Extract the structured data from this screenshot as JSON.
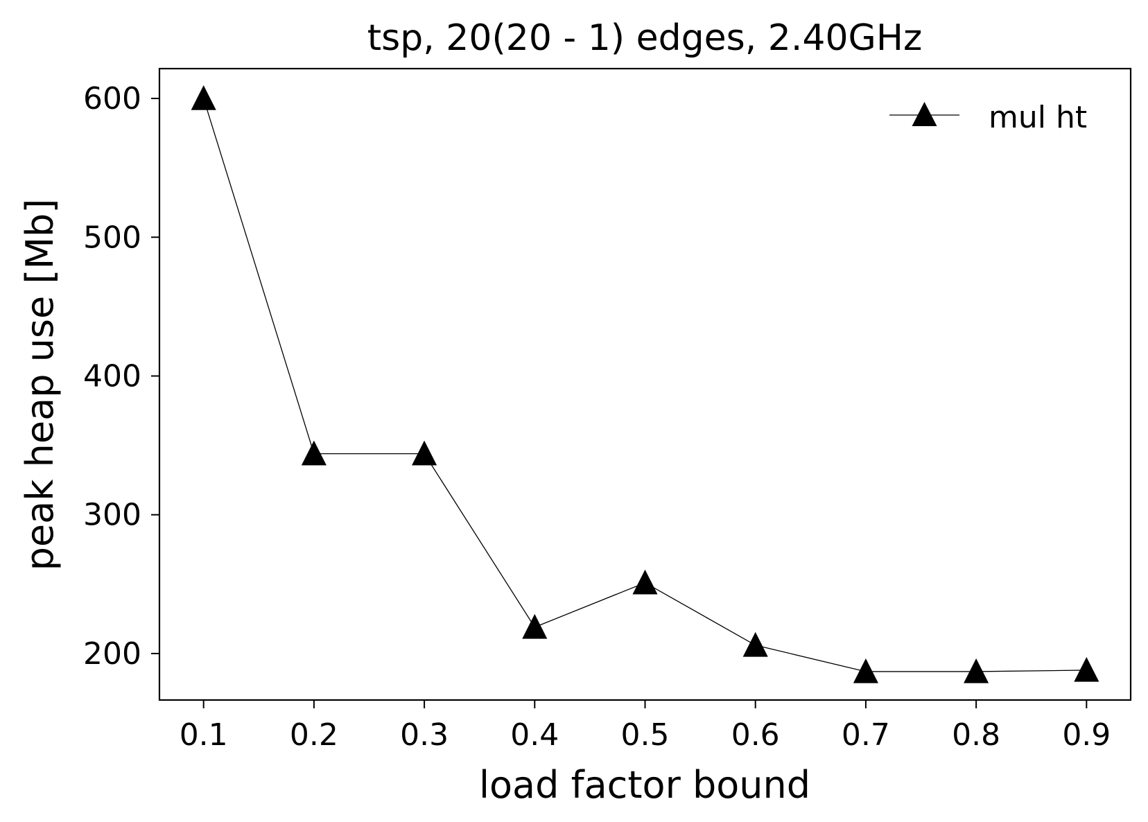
{
  "chart_data": {
    "type": "line",
    "title": "tsp, 20(20 - 1) edges, 2.40GHz",
    "xlabel": "load factor bound",
    "ylabel": "peak heap use [Mb]",
    "x": [
      0.1,
      0.2,
      0.3,
      0.4,
      0.5,
      0.6,
      0.7,
      0.8,
      0.9
    ],
    "x_ticks": [
      "0.1",
      "0.2",
      "0.3",
      "0.4",
      "0.5",
      "0.6",
      "0.7",
      "0.8",
      "0.9"
    ],
    "y_ticks": [
      "200",
      "300",
      "400",
      "500",
      "600"
    ],
    "y_tick_values": [
      200,
      300,
      400,
      500,
      600
    ],
    "xlim": [
      0.06,
      0.94
    ],
    "ylim": [
      166.5,
      621.5
    ],
    "grid": false,
    "legend_position": "top-right",
    "series": [
      {
        "name": "mul ht",
        "marker": "triangle-up",
        "color": "#000000",
        "values": [
          600,
          344,
          344,
          219,
          251,
          206,
          187,
          187,
          188
        ]
      }
    ]
  }
}
